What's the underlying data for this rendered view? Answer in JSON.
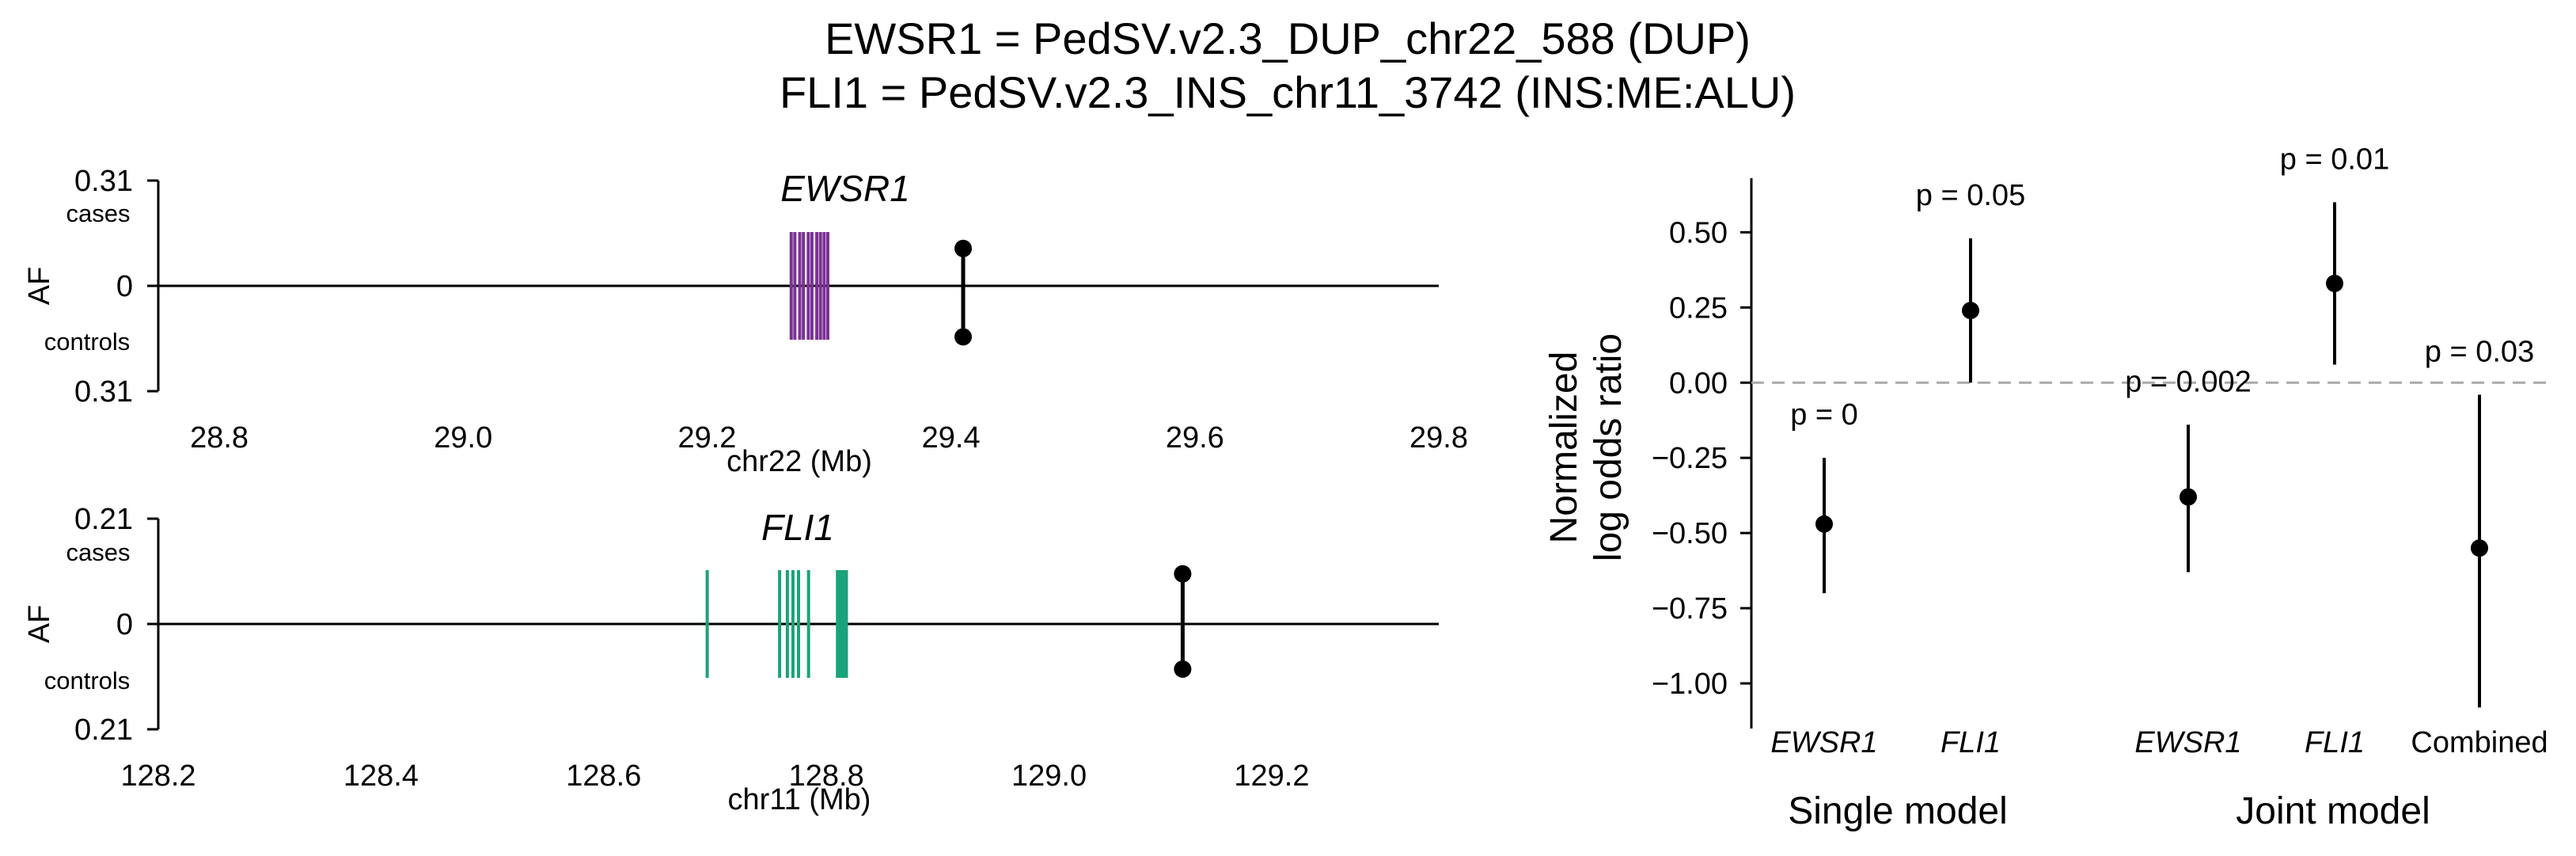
{
  "title": {
    "line1": "EWSR1 = PedSV.v2.3_DUP_chr22_588 (DUP)",
    "line2": "FLI1 = PedSV.v2.3_INS_chr11_3742 (INS:ME:ALU)"
  },
  "colors": {
    "ewsr1": "#7b3294",
    "fli1": "#1aa37a",
    "reference_line": "#aaaaaa",
    "marker": "#000000"
  },
  "chart_data": [
    {
      "type": "scatter",
      "panel": "EWSR1 locus",
      "gene_label": "EWSR1",
      "xlabel": "chr22 (Mb)",
      "ylabel": "AF",
      "xlim": [
        28.75,
        29.8
      ],
      "xticks": [
        "28.8",
        "29.0",
        "29.2",
        "29.4",
        "29.6",
        "29.8"
      ],
      "ytick_top": "0.31",
      "ytick_mid": "0",
      "ytick_bottom": "0.31",
      "upper_label": "cases",
      "lower_label": "controls",
      "exons": [
        29.269,
        29.272,
        29.276,
        29.279,
        29.283,
        29.286,
        29.29,
        29.293,
        29.296,
        29.299
      ],
      "sv_position": 29.41,
      "af_cases": 0.11,
      "af_controls": 0.15
    },
    {
      "type": "scatter",
      "panel": "FLI1 locus",
      "gene_label": "FLI1",
      "xlabel": "chr11 (Mb)",
      "ylabel": "AF",
      "xlim": [
        128.2,
        129.35
      ],
      "xticks": [
        "128.2",
        "128.4",
        "128.6",
        "128.8",
        "129.0",
        "129.2"
      ],
      "ytick_top": "0.21",
      "ytick_mid": "0",
      "ytick_bottom": "0.21",
      "upper_label": "cases",
      "lower_label": "controls",
      "exons": [
        128.693,
        128.758,
        128.765,
        128.77,
        128.775,
        128.784,
        128.81,
        128.812,
        128.814,
        128.816,
        128.818
      ],
      "sv_position": 129.12,
      "af_cases": 0.1,
      "af_controls": 0.09
    },
    {
      "type": "scatter",
      "panel": "log odds ratio",
      "ylabel_line1": "Normalized",
      "ylabel_line2": "log odds ratio",
      "ylim": [
        -1.15,
        0.68
      ],
      "yticks": [
        "0.50",
        "0.25",
        "0.00",
        "−0.25",
        "−0.50",
        "−0.75",
        "−1.00"
      ],
      "ytick_values": [
        0.5,
        0.25,
        0,
        -0.25,
        -0.5,
        -0.75,
        -1.0
      ],
      "reference_y": 0,
      "categories": [
        "EWSR1",
        "FLI1",
        "EWSR1",
        "FLI1",
        "Combined"
      ],
      "category_italic": [
        true,
        true,
        true,
        true,
        false
      ],
      "groups": [
        "Single model",
        "Joint model"
      ],
      "points": [
        {
          "estimate": -0.47,
          "ci_low": -0.7,
          "ci_high": -0.25,
          "p_label": "p = 0"
        },
        {
          "estimate": 0.24,
          "ci_low": 0.0,
          "ci_high": 0.48,
          "p_label": "p = 0.05"
        },
        {
          "estimate": -0.38,
          "ci_low": -0.63,
          "ci_high": -0.14,
          "p_label": "p = 0.002"
        },
        {
          "estimate": 0.33,
          "ci_low": 0.06,
          "ci_high": 0.6,
          "p_label": "p = 0.01"
        },
        {
          "estimate": -0.55,
          "ci_low": -1.08,
          "ci_high": -0.04,
          "p_label": "p = 0.03"
        }
      ]
    }
  ]
}
